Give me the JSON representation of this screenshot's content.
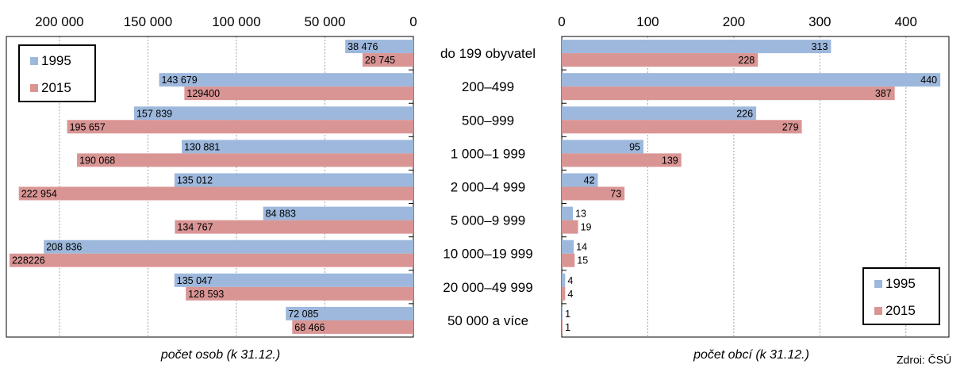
{
  "source_text": "Zdroj: ČSÚ",
  "chart_data": [
    {
      "type": "bar",
      "orientation": "horizontal",
      "direction": "reversed",
      "xlabel": "počet osob (k 31.12.)",
      "xlim": [
        0,
        230000
      ],
      "xticks": [
        {
          "value": 200000,
          "label": "200 000"
        },
        {
          "value": 150000,
          "label": "150 000"
        },
        {
          "value": 100000,
          "label": "100 000"
        },
        {
          "value": 50000,
          "label": "50 000"
        },
        {
          "value": 0,
          "label": "0"
        }
      ],
      "grid": true,
      "legend_position": "top-left",
      "categories": [
        "do 199 obyvatel",
        "200–499",
        "500–999",
        "1 000–1 999",
        "2 000–4 999",
        "5 000–9 999",
        "10 000–19 999",
        "20 000–49 999",
        "50 000 a více"
      ],
      "series": [
        {
          "name": "1995",
          "color": "#9db8dc",
          "values": [
            38476,
            143679,
            157839,
            130881,
            135012,
            84883,
            208836,
            135047,
            72085
          ],
          "labels": [
            "38 476",
            "143 679",
            "157 839",
            "130 881",
            "135 012",
            "84 883",
            "208 836",
            "135 047",
            "72 085"
          ]
        },
        {
          "name": "2015",
          "color": "#d99594",
          "values": [
            28745,
            129400,
            195657,
            190068,
            222954,
            134767,
            228226,
            128593,
            68466
          ],
          "labels": [
            "28 745",
            "129400",
            "195 657",
            "190 068",
            "222 954",
            "134 767",
            "228226",
            "128 593",
            "68 466"
          ]
        }
      ]
    },
    {
      "type": "bar",
      "orientation": "horizontal",
      "xlabel": "počet obcí (k 31.12.)",
      "xlim": [
        0,
        450
      ],
      "xticks": [
        {
          "value": 0,
          "label": "0"
        },
        {
          "value": 100,
          "label": "100"
        },
        {
          "value": 200,
          "label": "200"
        },
        {
          "value": 300,
          "label": "300"
        },
        {
          "value": 400,
          "label": "400"
        }
      ],
      "grid": true,
      "legend_position": "bottom-right",
      "categories": [
        "do 199 obyvatel",
        "200–499",
        "500–999",
        "1 000–1 999",
        "2 000–4 999",
        "5 000–9 999",
        "10 000–19 999",
        "20 000–49 999",
        "50 000 a více"
      ],
      "series": [
        {
          "name": "1995",
          "color": "#9db8dc",
          "values": [
            313,
            440,
            226,
            95,
            42,
            13,
            14,
            4,
            1
          ],
          "labels": [
            "313",
            "440",
            "226",
            "95",
            "42",
            "13",
            "14",
            "4",
            "1"
          ]
        },
        {
          "name": "2015",
          "color": "#d99594",
          "values": [
            228,
            387,
            279,
            139,
            73,
            19,
            15,
            4,
            1
          ],
          "labels": [
            "228",
            "387",
            "279",
            "139",
            "73",
            "19",
            "15",
            "4",
            "1"
          ]
        }
      ]
    }
  ]
}
